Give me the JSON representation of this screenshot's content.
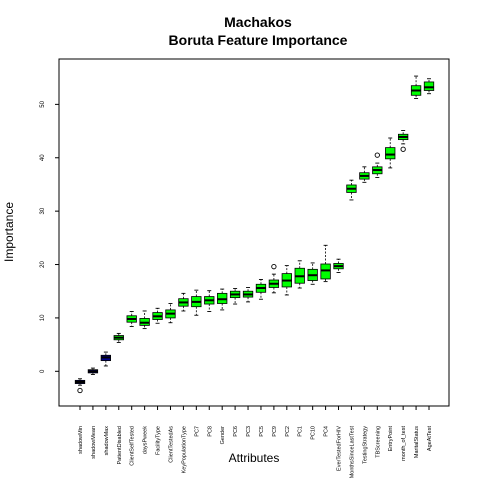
{
  "chart_data": {
    "type": "box",
    "title": "Machakos",
    "subtitle": "Boruta Feature Importance",
    "xlabel": "Attributes",
    "ylabel": "Importance",
    "ylim": [
      -6.5,
      58.5
    ],
    "yticks": [
      0,
      10,
      20,
      30,
      40,
      50
    ],
    "grid": false,
    "colors": {
      "shadow": "#00008B",
      "confirmed": "#00FF00",
      "median": "#000000",
      "outline": "#000000"
    },
    "categories": [
      {
        "name": "shadowMin",
        "kind": "shadow",
        "min": -2.6,
        "q1": -2.3,
        "median": -2.0,
        "q3": -1.7,
        "max": -1.4,
        "outliers": [
          -3.6
        ]
      },
      {
        "name": "shadowMean",
        "kind": "shadow",
        "min": -0.6,
        "q1": -0.3,
        "median": 0.0,
        "q3": 0.3,
        "max": 0.6,
        "outliers": []
      },
      {
        "name": "shadowMax",
        "kind": "shadow",
        "min": 1.0,
        "q1": 2.0,
        "median": 2.6,
        "q3": 3.0,
        "max": 3.6,
        "outliers": []
      },
      {
        "name": "PatientDisabled",
        "kind": "confirmed",
        "min": 5.4,
        "q1": 5.9,
        "median": 6.3,
        "q3": 6.7,
        "max": 7.1,
        "outliers": []
      },
      {
        "name": "ClientSelfTested",
        "kind": "confirmed",
        "min": 8.4,
        "q1": 9.2,
        "median": 9.8,
        "q3": 10.4,
        "max": 11.2,
        "outliers": []
      },
      {
        "name": "daysPweek",
        "kind": "confirmed",
        "min": 8.0,
        "q1": 8.6,
        "median": 9.1,
        "q3": 9.9,
        "max": 11.3,
        "outliers": []
      },
      {
        "name": "FacilityType",
        "kind": "confirmed",
        "min": 9.0,
        "q1": 9.7,
        "median": 10.3,
        "q3": 11.0,
        "max": 11.8,
        "outliers": []
      },
      {
        "name": "ClientTestedAs",
        "kind": "confirmed",
        "min": 9.1,
        "q1": 10.0,
        "median": 10.8,
        "q3": 11.5,
        "max": 12.7,
        "outliers": []
      },
      {
        "name": "KeyPopulationType",
        "kind": "confirmed",
        "min": 11.3,
        "q1": 12.2,
        "median": 12.9,
        "q3": 13.6,
        "max": 14.6,
        "outliers": []
      },
      {
        "name": "PC7",
        "kind": "confirmed",
        "min": 10.5,
        "q1": 12.1,
        "median": 13.0,
        "q3": 14.0,
        "max": 15.2,
        "outliers": []
      },
      {
        "name": "PC8",
        "kind": "confirmed",
        "min": 11.2,
        "q1": 12.6,
        "median": 13.3,
        "q3": 14.0,
        "max": 15.1,
        "outliers": []
      },
      {
        "name": "Gender",
        "kind": "confirmed",
        "min": 11.5,
        "q1": 12.7,
        "median": 13.5,
        "q3": 14.6,
        "max": 15.4,
        "outliers": []
      },
      {
        "name": "PC6",
        "kind": "confirmed",
        "min": 12.6,
        "q1": 13.8,
        "median": 14.4,
        "q3": 15.0,
        "max": 15.5,
        "outliers": []
      },
      {
        "name": "PC3",
        "kind": "confirmed",
        "min": 13.0,
        "q1": 13.9,
        "median": 14.4,
        "q3": 15.0,
        "max": 15.7,
        "outliers": []
      },
      {
        "name": "PC5",
        "kind": "confirmed",
        "min": 13.5,
        "q1": 14.8,
        "median": 15.6,
        "q3": 16.3,
        "max": 17.2,
        "outliers": []
      },
      {
        "name": "PC9",
        "kind": "confirmed",
        "min": 14.7,
        "q1": 15.7,
        "median": 16.4,
        "q3": 17.1,
        "max": 18.2,
        "outliers": [
          19.6
        ]
      },
      {
        "name": "PC2",
        "kind": "confirmed",
        "min": 14.3,
        "q1": 15.8,
        "median": 17.0,
        "q3": 18.3,
        "max": 19.8,
        "outliers": []
      },
      {
        "name": "PC1",
        "kind": "confirmed",
        "min": 15.6,
        "q1": 16.5,
        "median": 17.8,
        "q3": 19.3,
        "max": 20.7,
        "outliers": []
      },
      {
        "name": "PC10",
        "kind": "confirmed",
        "min": 16.3,
        "q1": 17.0,
        "median": 18.0,
        "q3": 19.1,
        "max": 20.3,
        "outliers": []
      },
      {
        "name": "PC4",
        "kind": "confirmed",
        "min": 16.8,
        "q1": 17.3,
        "median": 18.9,
        "q3": 20.1,
        "max": 23.6,
        "outliers": []
      },
      {
        "name": "EverTestedForHIV",
        "kind": "confirmed",
        "min": 18.5,
        "q1": 19.2,
        "median": 19.7,
        "q3": 20.2,
        "max": 21.0,
        "outliers": []
      },
      {
        "name": "MonthsSinceLastTest",
        "kind": "confirmed",
        "min": 32.1,
        "q1": 33.5,
        "median": 34.2,
        "q3": 34.9,
        "max": 35.8,
        "outliers": []
      },
      {
        "name": "TestingStrategy",
        "kind": "confirmed",
        "min": 35.4,
        "q1": 36.0,
        "median": 36.6,
        "q3": 37.2,
        "max": 38.3,
        "outliers": []
      },
      {
        "name": "TBScreening",
        "kind": "confirmed",
        "min": 36.3,
        "q1": 37.0,
        "median": 37.7,
        "q3": 38.3,
        "max": 39.0,
        "outliers": [
          40.5
        ]
      },
      {
        "name": "EntryPoint",
        "kind": "confirmed",
        "min": 38.1,
        "q1": 39.8,
        "median": 40.6,
        "q3": 41.9,
        "max": 43.7,
        "outliers": []
      },
      {
        "name": "month_of_test",
        "kind": "confirmed",
        "min": 42.6,
        "q1": 43.4,
        "median": 43.9,
        "q3": 44.4,
        "max": 45.1,
        "outliers": [
          41.6
        ]
      },
      {
        "name": "MaritalStatus",
        "kind": "confirmed",
        "min": 51.1,
        "q1": 51.7,
        "median": 52.6,
        "q3": 53.5,
        "max": 55.3,
        "outliers": []
      },
      {
        "name": "AgeAtTest",
        "kind": "confirmed",
        "min": 52.0,
        "q1": 52.6,
        "median": 53.2,
        "q3": 54.2,
        "max": 54.8,
        "outliers": []
      }
    ]
  }
}
